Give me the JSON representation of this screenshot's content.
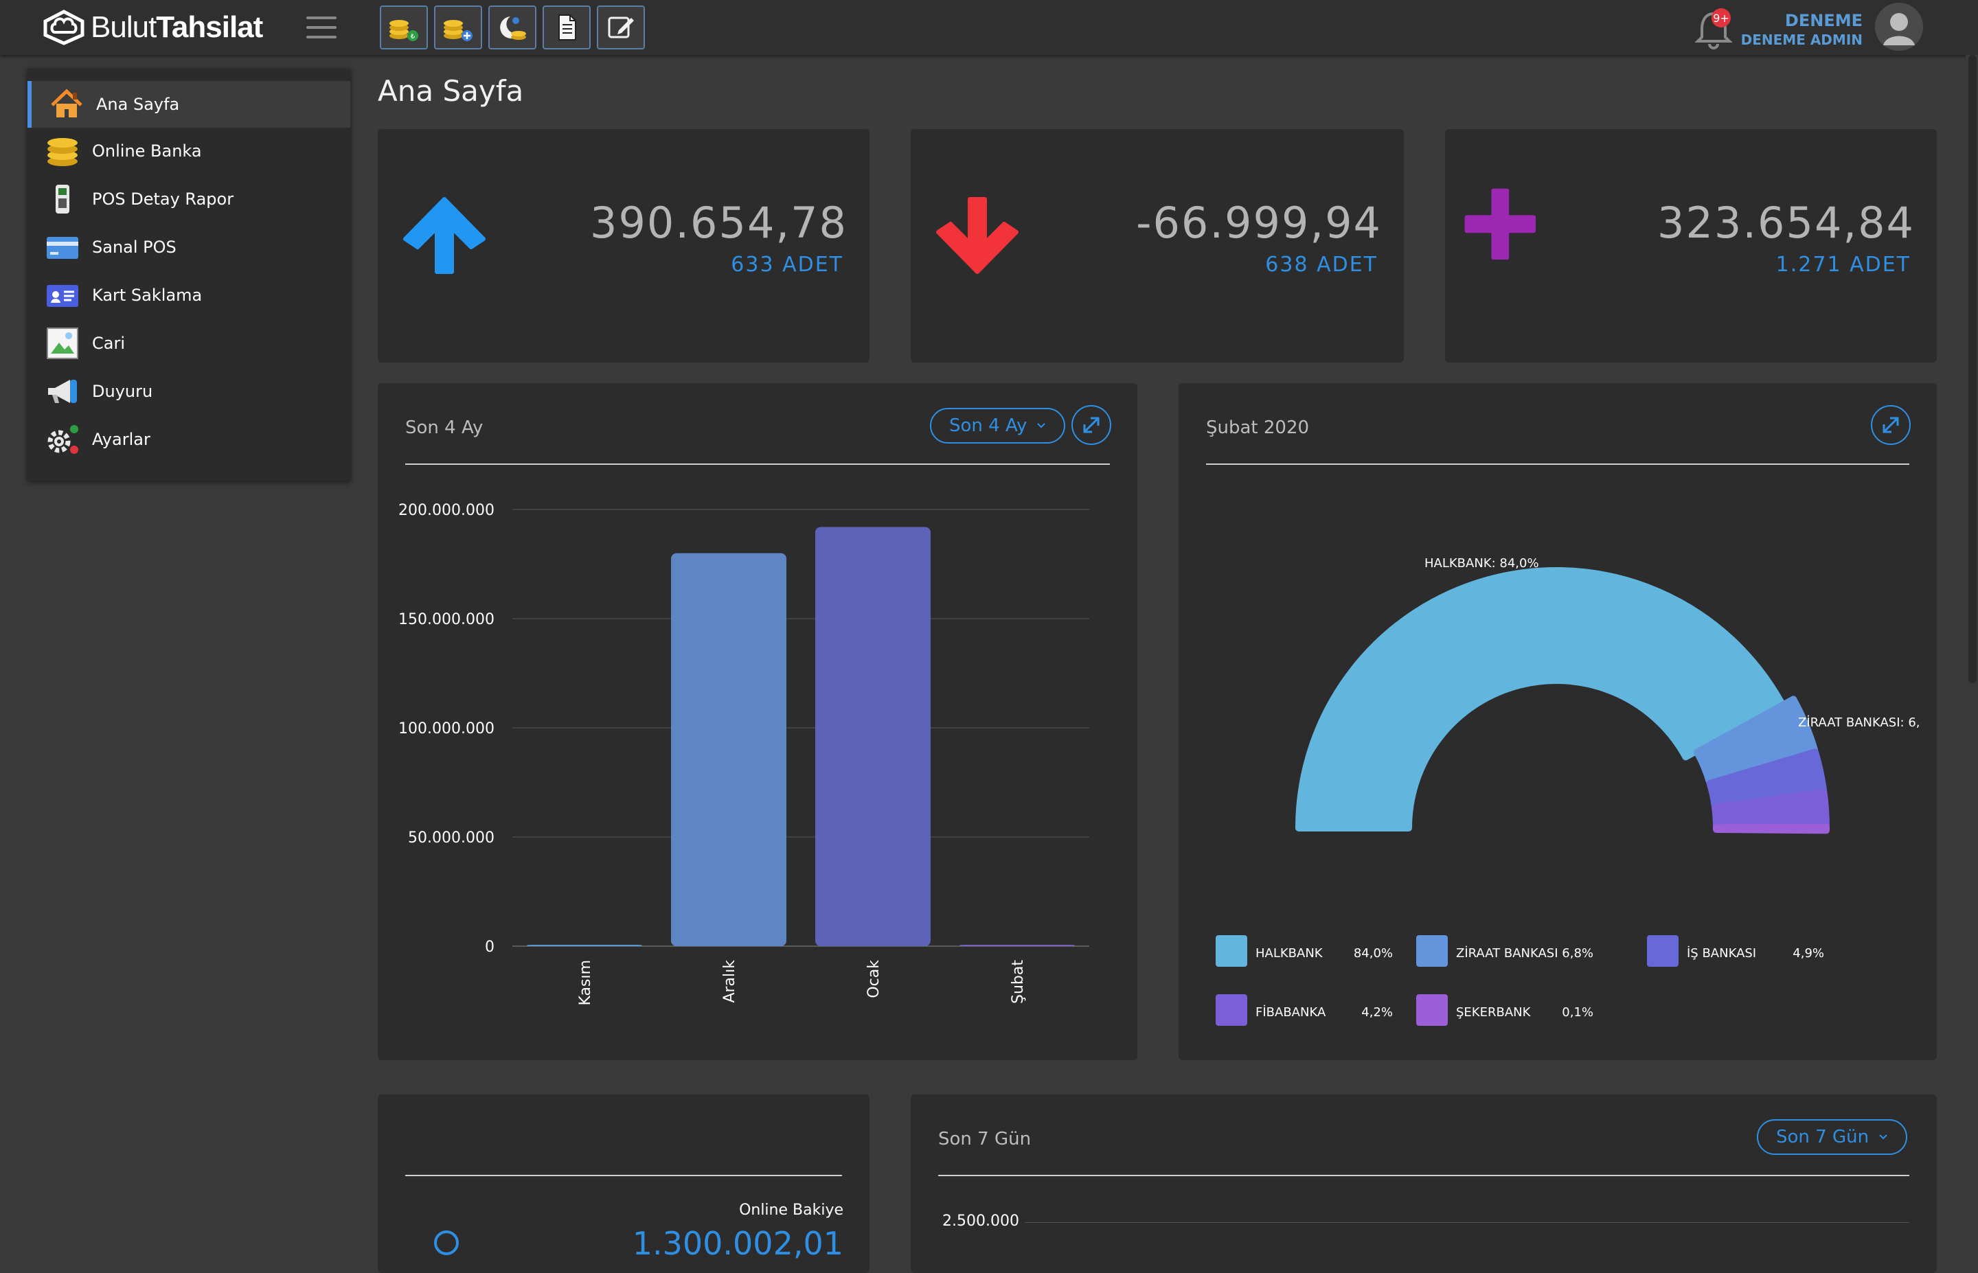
{
  "app": {
    "brand_light": "Bulut",
    "brand_bold": "Tahsilat",
    "notification_badge": "9+",
    "user_name": "DENEME",
    "user_role": "DENEME ADMIN"
  },
  "colors": {
    "accent": "#2f8fe3",
    "up_arrow": "#2196f3",
    "down_arrow": "#f2333a",
    "plus": "#9c27b0",
    "card_bg": "#2c2c2c",
    "page_bg": "#3a3a3a"
  },
  "toolbar": {
    "buttons": [
      {
        "icon": "coins-tl-icon"
      },
      {
        "icon": "coins-add-icon"
      },
      {
        "icon": "moon-coins-icon"
      },
      {
        "icon": "document-icon"
      },
      {
        "icon": "edit-icon"
      }
    ]
  },
  "sidebar": {
    "items": [
      {
        "label": "Ana Sayfa",
        "icon": "home-icon",
        "active": true
      },
      {
        "label": "Online Banka",
        "icon": "coins-icon"
      },
      {
        "label": "POS Detay Rapor",
        "icon": "pos-terminal-icon"
      },
      {
        "label": "Sanal POS",
        "icon": "credit-card-icon"
      },
      {
        "label": "Kart Saklama",
        "icon": "id-card-icon"
      },
      {
        "label": "Cari",
        "icon": "image-icon"
      },
      {
        "label": "Duyuru",
        "icon": "megaphone-icon"
      },
      {
        "label": "Ayarlar",
        "icon": "gear-icon"
      }
    ]
  },
  "page": {
    "title": "Ana Sayfa"
  },
  "stats": [
    {
      "value": "390.654,78",
      "count": "633 ADET",
      "icon": "arrow-up-icon"
    },
    {
      "value": "-66.999,94",
      "count": "638 ADET",
      "icon": "arrow-down-icon"
    },
    {
      "value": "323.654,84",
      "count": "1.271 ADET",
      "icon": "plus-icon"
    }
  ],
  "bar_panel": {
    "title": "Son 4 Ay",
    "dropdown": "Son 4 Ay"
  },
  "donut_panel": {
    "title": "Şubat 2020"
  },
  "balance_panel": {
    "label": "Online Bakiye",
    "value": "1.300.002,01"
  },
  "week_panel": {
    "title": "Son 7 Gün",
    "dropdown": "Son 7 Gün",
    "first_tick": "2.500.000"
  },
  "chart_data": [
    {
      "type": "bar",
      "title": "Son 4 Ay",
      "categories": [
        "Kasım",
        "Aralık",
        "Ocak",
        "Şubat"
      ],
      "values": [
        300000,
        180000000,
        192000000,
        400000
      ],
      "colors": [
        "#5b9bd5",
        "#5f86c4",
        "#5d63b8",
        "#7a5fc4"
      ],
      "ylim": [
        0,
        200000000
      ],
      "yticks": [
        "0",
        "50.000.000",
        "100.000.000",
        "150.000.000",
        "200.000.000"
      ],
      "ytick_values": [
        0,
        50000000,
        100000000,
        150000000,
        200000000
      ],
      "grid": true
    },
    {
      "type": "pie",
      "title": "Şubat 2020",
      "series": [
        {
          "name": "HALKBANK",
          "value": 84.0,
          "label": "84,0%",
          "color": "#62b6dd"
        },
        {
          "name": "ZİRAAT BANKASI",
          "value": 6.8,
          "label": "6,8%",
          "color": "#6495dc"
        },
        {
          "name": "İŞ BANKASI",
          "value": 4.9,
          "label": "4,9%",
          "color": "#6868d8"
        },
        {
          "name": "FİBABANKA",
          "value": 4.2,
          "label": "4,2%",
          "color": "#7b5fd8"
        },
        {
          "name": "ŞEKERBANK",
          "value": 0.1,
          "label": "0,1%",
          "color": "#9b5fd8"
        }
      ],
      "callouts": [
        "HALKBANK: 84,0%",
        "ZİRAAT BANKASI: 6,"
      ],
      "legend": "bottom"
    }
  ]
}
